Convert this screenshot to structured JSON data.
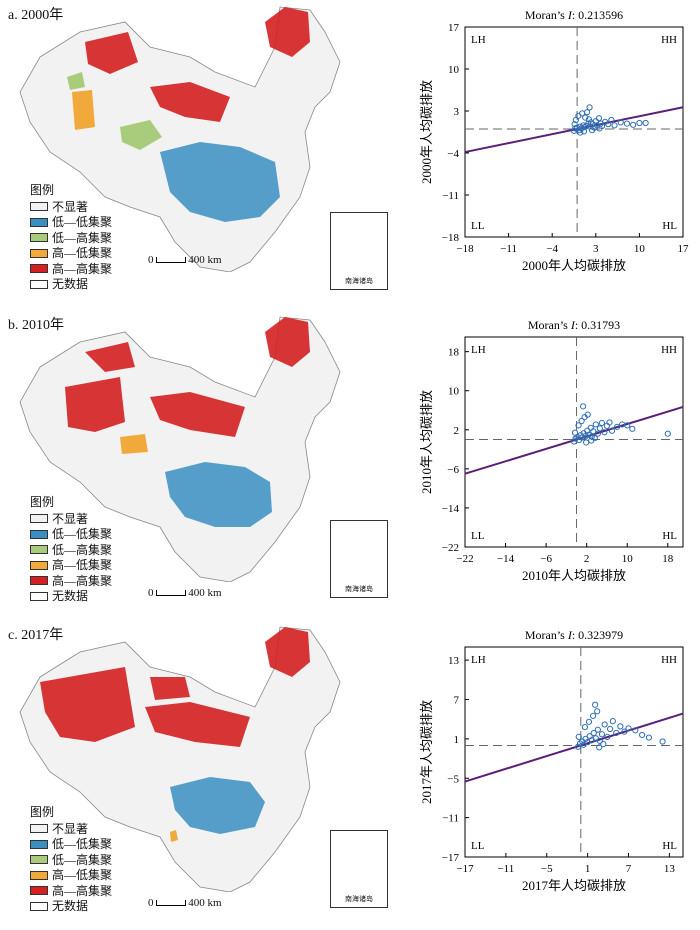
{
  "panels": [
    {
      "label": "a. 2000年"
    },
    {
      "label": "b. 2010年"
    },
    {
      "label": "c. 2017年"
    }
  ],
  "legend": {
    "title": "图例",
    "items": [
      {
        "label": "不显著",
        "color": "#f2f2f2"
      },
      {
        "label": "低—低集聚",
        "color": "#3a8fc2"
      },
      {
        "label": "低—高集聚",
        "color": "#a9cc7c"
      },
      {
        "label": "高—低集聚",
        "color": "#f2a93b"
      },
      {
        "label": "高—高集聚",
        "color": "#d42020"
      },
      {
        "label": "无数据",
        "color": "#ffffff"
      }
    ]
  },
  "scale_label": "400 km",
  "scale_zero": "0",
  "inset_caption": "南海诸岛",
  "chart_data": [
    {
      "type": "scatter",
      "title_prefix": "Moran’s ",
      "title_italic": "I",
      "title_value": ": 0.213596",
      "xlabel": "2000年人均碳排放",
      "ylabel": "2000年人均碳排放",
      "xlim": [
        -18,
        17
      ],
      "ylim": [
        -18,
        17
      ],
      "xticks": [
        -18,
        -11,
        -4,
        3,
        10,
        17
      ],
      "yticks": [
        -18,
        -11,
        -4,
        3,
        10,
        17
      ],
      "slope": 0.2136,
      "quadrants": [
        "LH",
        "HH",
        "LL",
        "HL"
      ],
      "points": [
        [
          -0.5,
          -0.3
        ],
        [
          -0.3,
          0.1
        ],
        [
          0,
          0.2
        ],
        [
          0.3,
          -0.2
        ],
        [
          0.5,
          0.4
        ],
        [
          0.7,
          0.1
        ],
        [
          1,
          0.6
        ],
        [
          1.2,
          0.3
        ],
        [
          1.5,
          0.5
        ],
        [
          1.8,
          0.9
        ],
        [
          2,
          0.4
        ],
        [
          2.2,
          1.1
        ],
        [
          2.5,
          0.8
        ],
        [
          2.8,
          0.2
        ],
        [
          3,
          1.3
        ],
        [
          3.2,
          0.6
        ],
        [
          3.5,
          1.8
        ],
        [
          3.8,
          0.9
        ],
        [
          4,
          0.5
        ],
        [
          4.5,
          1.2
        ],
        [
          5,
          0.8
        ],
        [
          5.5,
          1.5
        ],
        [
          6,
          0.6
        ],
        [
          7,
          1.1
        ],
        [
          8,
          0.9
        ],
        [
          9,
          0.7
        ],
        [
          10,
          1
        ],
        [
          11,
          1
        ],
        [
          -0.2,
          1.5
        ],
        [
          0.2,
          2.2
        ],
        [
          0.8,
          2.6
        ],
        [
          1.3,
          1.9
        ],
        [
          2,
          3.6
        ],
        [
          1.6,
          2.8
        ],
        [
          -0.4,
          0.8
        ],
        [
          0.5,
          -0.6
        ],
        [
          1.1,
          -0.4
        ],
        [
          2.4,
          -0.2
        ],
        [
          3.6,
          0.1
        ],
        [
          1.9,
          1.6
        ]
      ]
    },
    {
      "type": "scatter",
      "title_prefix": "Moran’s ",
      "title_italic": "I",
      "title_value": ": 0.31793",
      "xlabel": "2010年人均碳排放",
      "ylabel": "2010年人均碳排放",
      "xlim": [
        -22,
        21
      ],
      "ylim": [
        -22,
        21
      ],
      "xticks": [
        -22,
        -14,
        -6,
        2,
        10,
        18
      ],
      "yticks": [
        -22,
        -14,
        -6,
        2,
        10,
        18
      ],
      "slope": 0.31793,
      "quadrants": [
        "LH",
        "HH",
        "LL",
        "HL"
      ],
      "points": [
        [
          -0.5,
          -0.4
        ],
        [
          -0.2,
          0.2
        ],
        [
          0.2,
          0.5
        ],
        [
          0.5,
          -0.1
        ],
        [
          0.8,
          0.9
        ],
        [
          1.1,
          0.4
        ],
        [
          1.4,
          1.3
        ],
        [
          1.8,
          0.7
        ],
        [
          2.1,
          1.8
        ],
        [
          2.4,
          1
        ],
        [
          2.8,
          2.4
        ],
        [
          3,
          0.6
        ],
        [
          3.3,
          1.7
        ],
        [
          3.8,
          3.1
        ],
        [
          4.2,
          1.2
        ],
        [
          4.6,
          2.3
        ],
        [
          5,
          3.4
        ],
        [
          5.5,
          1.5
        ],
        [
          6,
          2.8
        ],
        [
          6.5,
          3.5
        ],
        [
          7,
          1.8
        ],
        [
          8,
          2.6
        ],
        [
          9,
          3.1
        ],
        [
          10,
          2.9
        ],
        [
          11,
          2.2
        ],
        [
          18,
          1.2
        ],
        [
          1,
          3.8
        ],
        [
          1.6,
          4.6
        ],
        [
          2.2,
          5.1
        ],
        [
          1.3,
          6.8
        ],
        [
          0.4,
          2.9
        ],
        [
          2.9,
          -0.2
        ],
        [
          -0.3,
          1.4
        ],
        [
          3.6,
          0.3
        ],
        [
          1.9,
          -0.6
        ]
      ]
    },
    {
      "type": "scatter",
      "title_prefix": "Moran’s ",
      "title_italic": "I",
      "title_value": ": 0.323979",
      "xlabel": "2017年人均碳排放",
      "ylabel": "2017年人均碳排放",
      "xlim": [
        -17,
        15
      ],
      "ylim": [
        -17,
        15
      ],
      "xticks": [
        -17,
        -11,
        -5,
        1,
        7,
        13
      ],
      "yticks": [
        -17,
        -11,
        -5,
        1,
        7,
        13
      ],
      "slope": 0.323979,
      "quadrants": [
        "LH",
        "HH",
        "LL",
        "HL"
      ],
      "points": [
        [
          -0.4,
          -0.2
        ],
        [
          -0.1,
          0.3
        ],
        [
          0.2,
          0.6
        ],
        [
          0.4,
          0.1
        ],
        [
          0.7,
          1
        ],
        [
          1,
          0.5
        ],
        [
          1.3,
          1.4
        ],
        [
          1.6,
          0.8
        ],
        [
          1.9,
          1.9
        ],
        [
          2.2,
          1.1
        ],
        [
          2.5,
          2.4
        ],
        [
          2.8,
          0.7
        ],
        [
          3.1,
          1.7
        ],
        [
          3.5,
          3.2
        ],
        [
          3.9,
          1.3
        ],
        [
          4.3,
          2.5
        ],
        [
          4.7,
          3.7
        ],
        [
          5.2,
          1.9
        ],
        [
          5.8,
          2.9
        ],
        [
          6.4,
          2.1
        ],
        [
          7,
          2.6
        ],
        [
          8,
          2.3
        ],
        [
          9,
          1.6
        ],
        [
          10,
          1.2
        ],
        [
          12,
          0.6
        ],
        [
          1.2,
          3.6
        ],
        [
          1.8,
          4.5
        ],
        [
          2.4,
          5.2
        ],
        [
          2.1,
          6.2
        ],
        [
          0.6,
          2.8
        ],
        [
          -0.3,
          1.3
        ],
        [
          3.3,
          0.2
        ],
        [
          2.7,
          -0.3
        ]
      ]
    }
  ]
}
